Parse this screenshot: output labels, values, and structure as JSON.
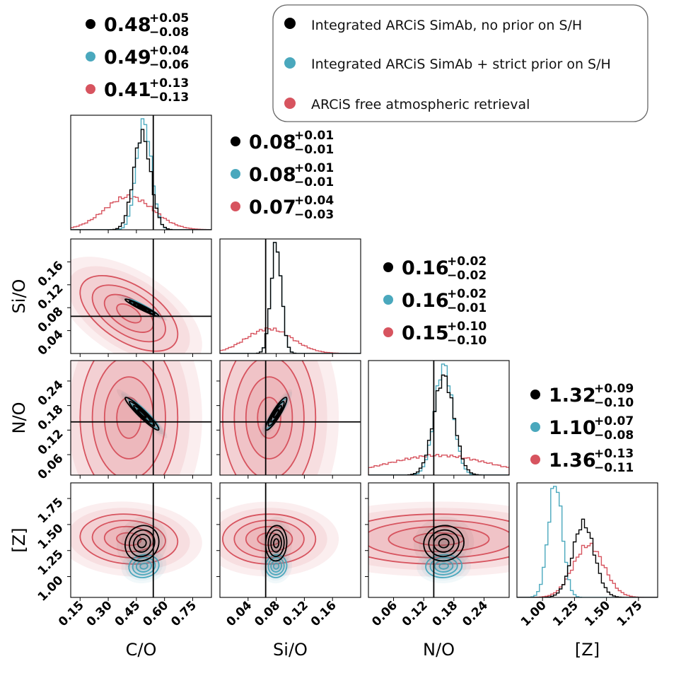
{
  "chart_data": {
    "type": "corner",
    "title": "",
    "parameters": [
      {
        "key": "co",
        "label": "C/O",
        "range": [
          0.1,
          0.85
        ],
        "ticks": [
          "0.15",
          "0.30",
          "0.45",
          "0.60",
          "0.75"
        ],
        "tick_values": [
          0.15,
          0.3,
          0.45,
          0.6,
          0.75
        ],
        "truth": 0.54
      },
      {
        "key": "sio",
        "label": "Si/O",
        "range": [
          0.0,
          0.2
        ],
        "ticks": [
          "0.04",
          "0.08",
          "0.12",
          "0.16"
        ],
        "tick_values": [
          0.04,
          0.08,
          0.12,
          0.16
        ],
        "truth": 0.065
      },
      {
        "key": "no",
        "label": "N/O",
        "range": [
          0.01,
          0.29
        ],
        "ticks": [
          "0.06",
          "0.12",
          "0.18",
          "0.24"
        ],
        "tick_values": [
          0.06,
          0.12,
          0.18,
          0.24
        ],
        "truth": 0.14
      },
      {
        "key": "z",
        "label": "[Z]",
        "range": [
          0.8,
          1.9
        ],
        "ticks": [
          "1.00",
          "1.25",
          "1.50",
          "1.75"
        ],
        "tick_values": [
          1.0,
          1.25,
          1.5,
          1.75
        ],
        "truth": null
      }
    ],
    "series": [
      {
        "name": "Integrated ARCiS SimAb, no prior on S/H",
        "color": "#000000",
        "means": [
          0.48,
          0.08,
          0.16,
          1.32
        ],
        "sigmas": [
          0.045,
          0.0075,
          0.02,
          0.085
        ],
        "correlations": {
          "sio_co": -0.96,
          "no_co": -0.95,
          "no_sio": 0.9,
          "z_co": 0.1,
          "z_sio": 0.05,
          "z_no": 0.05
        },
        "summary": [
          {
            "value": "0.48",
            "plus": "+0.05",
            "minus": "−0.08"
          },
          {
            "value": "0.08",
            "plus": "+0.01",
            "minus": "−0.01"
          },
          {
            "value": "0.16",
            "plus": "+0.02",
            "minus": "−0.02"
          },
          {
            "value": "1.32",
            "plus": "+0.09",
            "minus": "−0.10"
          }
        ]
      },
      {
        "name": "Integrated ARCiS SimAb + strict prior on S/H",
        "color": "#4aa8bd",
        "means": [
          0.49,
          0.08,
          0.16,
          1.1
        ],
        "sigmas": [
          0.04,
          0.0075,
          0.018,
          0.055
        ],
        "correlations": {
          "sio_co": -0.96,
          "no_co": -0.95,
          "no_sio": 0.9,
          "z_co": 0.1,
          "z_sio": 0.05,
          "z_no": 0.05
        },
        "summary": [
          {
            "value": "0.49",
            "plus": "+0.04",
            "minus": "−0.06"
          },
          {
            "value": "0.08",
            "plus": "+0.01",
            "minus": "−0.01"
          },
          {
            "value": "0.16",
            "plus": "+0.02",
            "minus": "−0.01"
          },
          {
            "value": "1.10",
            "plus": "+0.07",
            "minus": "−0.08"
          }
        ]
      },
      {
        "name": "ARCiS free atmospheric retrieval",
        "color": "#d7545f",
        "means": [
          0.41,
          0.07,
          0.15,
          1.36
        ],
        "sigmas": [
          0.13,
          0.033,
          0.1,
          0.12
        ],
        "correlations": {
          "sio_co": -0.55,
          "no_co": 0.0,
          "no_sio": 0.0,
          "z_co": -0.1,
          "z_sio": 0.0,
          "z_no": 0.0
        },
        "summary": [
          {
            "value": "0.41",
            "plus": "+0.13",
            "minus": "−0.13"
          },
          {
            "value": "0.07",
            "plus": "+0.04",
            "minus": "−0.03"
          },
          {
            "value": "0.15",
            "plus": "+0.10",
            "minus": "−0.10"
          },
          {
            "value": "1.36",
            "plus": "+0.13",
            "minus": "−0.11"
          }
        ]
      }
    ],
    "legend": {
      "position": "top-right",
      "entries": [
        "Integrated ARCiS SimAb, no prior on S/H",
        "Integrated ARCiS SimAb + strict prior on S/H",
        "ARCiS free atmospheric retrieval"
      ]
    }
  }
}
